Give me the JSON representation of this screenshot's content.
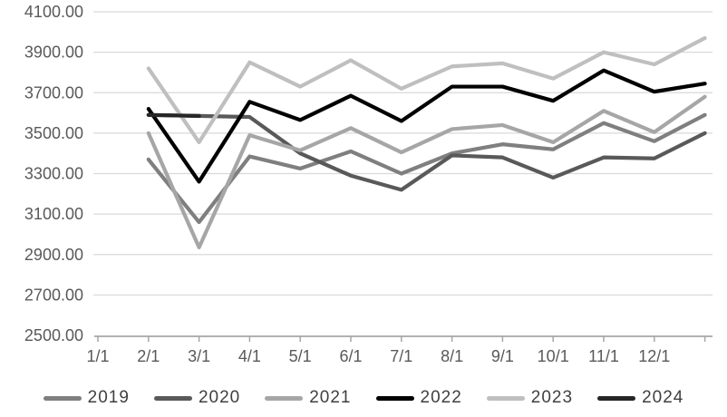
{
  "page": {
    "background": "#ffffff"
  },
  "chart_data": {
    "type": "line",
    "title": "",
    "xlabel": "",
    "ylabel": "",
    "grid": "horizontal",
    "legend_position": "bottom",
    "y_axis": {
      "min": 2500,
      "max": 4100,
      "tick_step": 200,
      "tick_labels": [
        "4100.00",
        "3900.00",
        "3700.00",
        "3500.00",
        "3300.00",
        "3100.00",
        "2900.00",
        "2700.00",
        "2500.00"
      ]
    },
    "x_axis": {
      "tick_labels": [
        "1/1",
        "2/1",
        "3/1",
        "4/1",
        "5/1",
        "6/1",
        "7/1",
        "8/1",
        "9/1",
        "10/1",
        "11/1",
        "12/1"
      ],
      "plotting_note": "monthly values plotted at month-end: January value sits above the 2/1 tick, December value at the right edge past 12/1"
    },
    "months": [
      "Jan",
      "Feb",
      "Mar",
      "Apr",
      "May",
      "Jun",
      "Jul",
      "Aug",
      "Sep",
      "Oct",
      "Nov",
      "Dec"
    ],
    "series": [
      {
        "name": "2019",
        "color": "#7f7f7f",
        "values": [
          3370,
          3060,
          3385,
          3325,
          3410,
          3300,
          3400,
          3445,
          3420,
          3550,
          3460,
          3590
        ]
      },
      {
        "name": "2020",
        "color": "#595959",
        "values": [
          3590,
          3585,
          3580,
          3400,
          3290,
          3220,
          3390,
          3380,
          3280,
          3380,
          3375,
          3500
        ]
      },
      {
        "name": "2021",
        "color": "#a6a6a6",
        "values": [
          3500,
          2935,
          3490,
          3415,
          3525,
          3405,
          3520,
          3540,
          3455,
          3610,
          3505,
          3680
        ]
      },
      {
        "name": "2022",
        "color": "#000000",
        "values": [
          3620,
          3260,
          3655,
          3565,
          3685,
          3560,
          3730,
          3730,
          3660,
          3810,
          3705,
          3745
        ]
      },
      {
        "name": "2023",
        "color": "#bfbfbf",
        "values": [
          3820,
          3455,
          3850,
          3730,
          3860,
          3720,
          3830,
          3845,
          3770,
          3900,
          3840,
          3970
        ]
      },
      {
        "name": "2024",
        "color": "#262626",
        "values": [
          3590,
          3585
        ]
      }
    ]
  }
}
